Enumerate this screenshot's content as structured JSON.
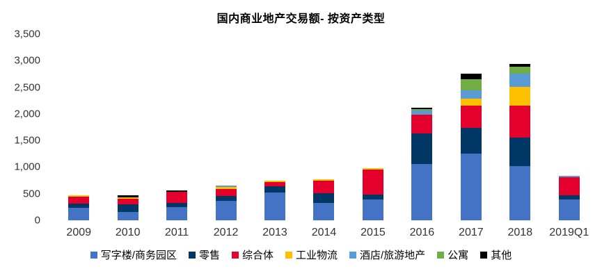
{
  "title": "国内商业地产交易额- 按资产类型",
  "colors": {
    "background": "#ffffff",
    "title_text": "#000000",
    "axis_text": "#333333",
    "legend_text": "#000000"
  },
  "chart_data": {
    "type": "bar",
    "stacked": true,
    "title": "国内商业地产交易额- 按资产类型",
    "xlabel": "",
    "ylabel": "",
    "ylim": [
      0,
      3500
    ],
    "ytick_step": 500,
    "ytick_labels": [
      "3,500",
      "3,000",
      "2,500",
      "2,000",
      "1,500",
      "1,000",
      "500",
      "0"
    ],
    "grid": false,
    "legend_position": "bottom",
    "categories": [
      "2009",
      "2010",
      "2011",
      "2012",
      "2013",
      "2014",
      "2015",
      "2016",
      "2017",
      "2018",
      "2019Q1"
    ],
    "series": [
      {
        "name": "写字楼/商务园区",
        "color": "#4472C4",
        "values": [
          235,
          155,
          250,
          365,
          520,
          330,
          395,
          1055,
          1250,
          1020,
          390
        ]
      },
      {
        "name": "零售",
        "color": "#003764",
        "values": [
          80,
          145,
          80,
          90,
          115,
          185,
          85,
          575,
          485,
          530,
          80
        ]
      },
      {
        "name": "综合体",
        "color": "#E4002C",
        "values": [
          130,
          105,
          210,
          130,
          90,
          235,
          480,
          350,
          420,
          610,
          340
        ]
      },
      {
        "name": "工业物流",
        "color": "#FFC000",
        "values": [
          25,
          25,
          0,
          40,
          20,
          20,
          20,
          0,
          130,
          350,
          0
        ]
      },
      {
        "name": "酒店/旅游地产",
        "color": "#5B9BD5",
        "values": [
          0,
          0,
          0,
          25,
          0,
          0,
          0,
          90,
          155,
          250,
          25
        ]
      },
      {
        "name": "公寓",
        "color": "#70AD47",
        "values": [
          0,
          0,
          0,
          0,
          0,
          0,
          0,
          25,
          210,
          130,
          0
        ]
      },
      {
        "name": "其他",
        "color": "#000000",
        "values": [
          0,
          35,
          20,
          0,
          0,
          0,
          0,
          25,
          105,
          50,
          0
        ]
      }
    ],
    "totals": [
      470,
      465,
      560,
      650,
      745,
      770,
      980,
      2120,
      2755,
      2940,
      835
    ]
  }
}
